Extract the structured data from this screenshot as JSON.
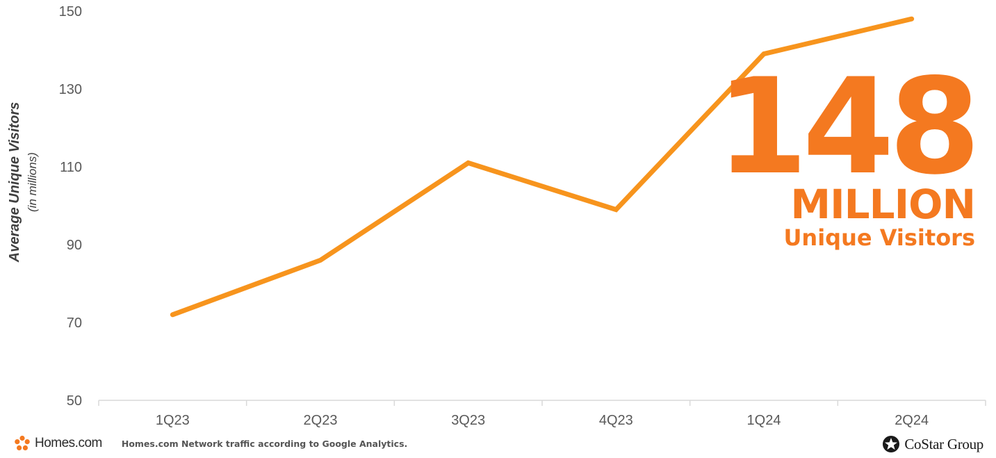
{
  "chart_data": {
    "type": "line",
    "categories": [
      "1Q23",
      "2Q23",
      "3Q23",
      "4Q23",
      "1Q24",
      "2Q24"
    ],
    "series": [
      {
        "values": [
          72,
          86,
          111,
          99,
          139,
          148
        ],
        "color": "#f7941d"
      }
    ],
    "ylabel": "Average Unique Visitors",
    "ylabel_sub": "(in millions)",
    "ylim": [
      50,
      150
    ],
    "yticks": [
      50,
      70,
      90,
      110,
      130,
      150
    ],
    "grid": false
  },
  "callout": {
    "number": "148",
    "unit": "MILLION",
    "label": "Unique Visitors",
    "color": "#f47920"
  },
  "footer": {
    "brand": "Homes.com",
    "note": "Homes.com Network traffic according to Google Analytics.",
    "partner": "CoStar Group",
    "brand_icon": "homes-logo-icon",
    "partner_icon": "costar-logo-icon"
  }
}
